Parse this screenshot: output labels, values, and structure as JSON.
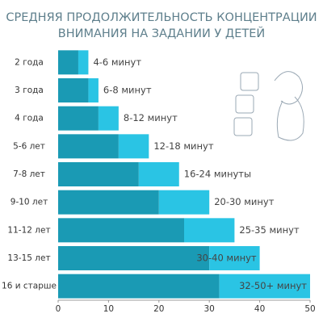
{
  "chart_data": {
    "type": "range-bar",
    "title": [
      "СРЕДНЯЯ ПРОДОЛЖИТЕЛЬНОСТЬ КОНЦЕНТРАЦИИ",
      "ВНИМАНИЯ НА ЗАДАНИИ У ДЕТЕЙ"
    ],
    "categories": [
      "2 года",
      "3 года",
      "4 года",
      "5-6 лет",
      "7-8 лет",
      "9-10 лет",
      "11-12 лет",
      "13-15 лет",
      "16 и старше"
    ],
    "series": [
      {
        "color": "#1a9ab4",
        "values": [
          4,
          6,
          8,
          12,
          16,
          20,
          25,
          30,
          32
        ]
      },
      {
        "color": "#2ac4e4",
        "values": [
          2,
          2,
          4,
          6,
          8,
          10,
          10,
          10,
          18
        ]
      }
    ],
    "value_labels": [
      "4-6 минут",
      "6-8 минут",
      "8-12 минут",
      "12-18 минут",
      "16-24 минуты",
      "20-30 минут",
      "25-35 минут",
      "30-40 минут",
      "32-50+ минут"
    ],
    "xlim": [
      0,
      50
    ],
    "xticks": [
      0,
      10,
      20,
      30,
      40,
      50
    ]
  }
}
